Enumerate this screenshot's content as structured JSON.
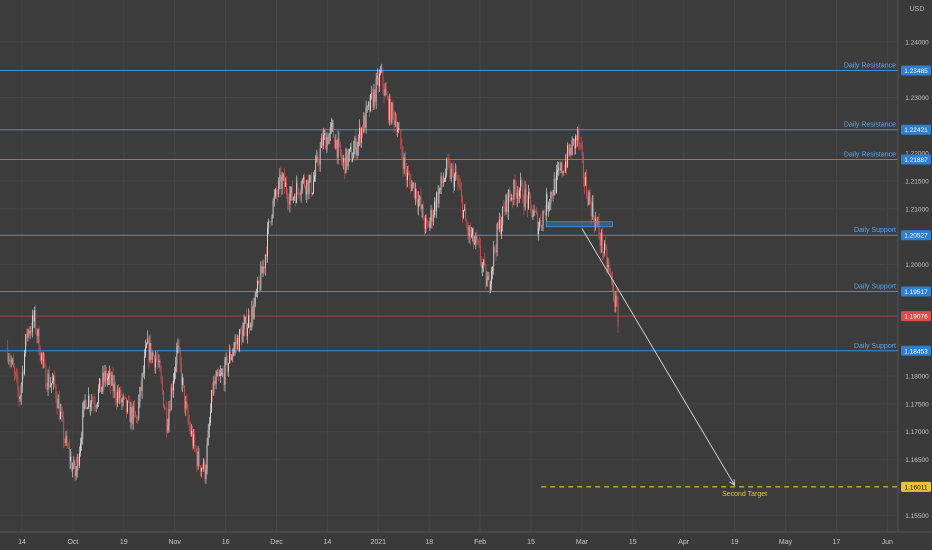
{
  "chart_data": {
    "type": "candlestick",
    "currency_label": "USD",
    "y_range": [
      1.152,
      1.2475
    ],
    "y_ticks": [
      {
        "value": 1.24,
        "label": "1.24000"
      },
      {
        "value": 1.23,
        "label": "1.23000"
      },
      {
        "value": 1.22,
        "label": "1.22000"
      },
      {
        "value": 1.215,
        "label": "1.21500"
      },
      {
        "value": 1.21,
        "label": "1.21000"
      },
      {
        "value": 1.2,
        "label": "1.20000"
      },
      {
        "value": 1.18,
        "label": "1.18000"
      },
      {
        "value": 1.175,
        "label": "1.17500"
      },
      {
        "value": 1.17,
        "label": "1.17000"
      },
      {
        "value": 1.165,
        "label": "1.16500"
      },
      {
        "value": 1.155,
        "label": "1.15500"
      }
    ],
    "x_ticks": [
      {
        "label": "14",
        "x": 0.0
      },
      {
        "label": "Oct",
        "x": 1.0
      },
      {
        "label": "19",
        "x": 2.0
      },
      {
        "label": "Nov",
        "x": 3.0
      },
      {
        "label": "16",
        "x": 4.0
      },
      {
        "label": "Dec",
        "x": 5.0
      },
      {
        "label": "14",
        "x": 6.0
      },
      {
        "label": "2021",
        "x": 7.0
      },
      {
        "label": "18",
        "x": 8.0
      },
      {
        "label": "Feb",
        "x": 9.0
      },
      {
        "label": "15",
        "x": 10.0
      },
      {
        "label": "Mar",
        "x": 11.0
      },
      {
        "label": "15",
        "x": 12.0
      },
      {
        "label": "Apr",
        "x": 13.0
      },
      {
        "label": "19",
        "x": 14.0
      },
      {
        "label": "May",
        "x": 15.0
      },
      {
        "label": "17",
        "x": 16.0
      },
      {
        "label": "Jun",
        "x": 17.0
      }
    ],
    "levels": [
      {
        "label": "Daily Resistance",
        "value": 1.23485,
        "tag": "1.23485"
      },
      {
        "label": "Daily Resistance",
        "value": 1.22421,
        "tag": "1.22421"
      },
      {
        "label": "Daily Resistance",
        "value": 1.21887,
        "tag": "1.21887"
      },
      {
        "label": "Daily Support",
        "value": 1.20527,
        "tag": "1.20527"
      },
      {
        "label": "Daily Support",
        "value": 1.19517,
        "tag": "1.19517"
      },
      {
        "label": "Daily Support",
        "value": 1.18453,
        "tag": "1.18453"
      }
    ],
    "current_price": {
      "value": 1.19076,
      "tag": "1.19076"
    },
    "target": {
      "label": "Second Target",
      "value": 1.16011,
      "tag": "1.16011",
      "x_start": 10.2
    },
    "zone": {
      "x_start": 10.3,
      "x_end": 11.6,
      "y_top": 1.2077,
      "y_bottom": 1.2068
    },
    "arrow": {
      "x1": 11.0,
      "y1": 1.2065,
      "x2": 14.0,
      "y2": 1.1604
    },
    "price_path": [
      [
        -0.28,
        1.185
      ],
      [
        -0.05,
        1.176
      ],
      [
        0.1,
        1.188
      ],
      [
        0.25,
        1.19
      ],
      [
        0.45,
        1.18
      ],
      [
        0.65,
        1.178
      ],
      [
        0.85,
        1.168
      ],
      [
        1.05,
        1.162
      ],
      [
        1.25,
        1.176
      ],
      [
        1.45,
        1.176
      ],
      [
        1.65,
        1.18
      ],
      [
        1.85,
        1.177
      ],
      [
        2.05,
        1.174
      ],
      [
        2.25,
        1.172
      ],
      [
        2.45,
        1.185
      ],
      [
        2.65,
        1.183
      ],
      [
        2.85,
        1.172
      ],
      [
        3.05,
        1.185
      ],
      [
        3.25,
        1.172
      ],
      [
        3.45,
        1.165
      ],
      [
        3.6,
        1.163
      ],
      [
        3.75,
        1.178
      ],
      [
        3.95,
        1.18
      ],
      [
        4.15,
        1.185
      ],
      [
        4.35,
        1.188
      ],
      [
        4.55,
        1.192
      ],
      [
        4.75,
        1.2
      ],
      [
        4.9,
        1.21
      ],
      [
        5.1,
        1.215
      ],
      [
        5.3,
        1.212
      ],
      [
        5.5,
        1.215
      ],
      [
        5.7,
        1.214
      ],
      [
        5.9,
        1.222
      ],
      [
        6.1,
        1.224
      ],
      [
        6.3,
        1.218
      ],
      [
        6.5,
        1.22
      ],
      [
        6.7,
        1.225
      ],
      [
        6.9,
        1.23
      ],
      [
        7.05,
        1.234
      ],
      [
        7.2,
        1.228
      ],
      [
        7.35,
        1.226
      ],
      [
        7.55,
        1.216
      ],
      [
        7.75,
        1.213
      ],
      [
        7.95,
        1.206
      ],
      [
        8.15,
        1.212
      ],
      [
        8.35,
        1.217
      ],
      [
        8.55,
        1.215
      ],
      [
        8.75,
        1.206
      ],
      [
        8.95,
        1.203
      ],
      [
        9.15,
        1.196
      ],
      [
        9.35,
        1.206
      ],
      [
        9.55,
        1.212
      ],
      [
        9.75,
        1.214
      ],
      [
        9.95,
        1.211
      ],
      [
        10.15,
        1.207
      ],
      [
        10.35,
        1.212
      ],
      [
        10.55,
        1.216
      ],
      [
        10.75,
        1.22
      ],
      [
        10.92,
        1.223
      ],
      [
        11.05,
        1.215
      ],
      [
        11.2,
        1.21
      ],
      [
        11.35,
        1.205
      ],
      [
        11.5,
        1.2
      ],
      [
        11.62,
        1.195
      ],
      [
        11.72,
        1.19
      ]
    ]
  }
}
